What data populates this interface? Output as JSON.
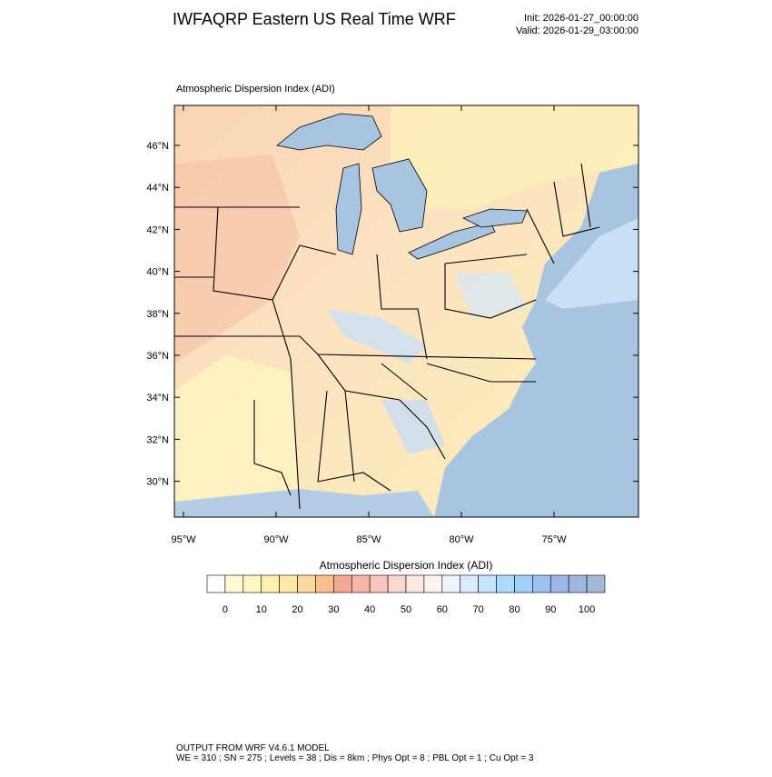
{
  "header": {
    "title": "IWFAQRP Eastern US Real Time WRF",
    "init": "Init: 2026-01-27_00:00:00",
    "valid": "Valid: 2026-01-29_03:00:00"
  },
  "map": {
    "subtitle": "Atmospheric Dispersion Index   (ADI)",
    "lat_labels": [
      "46°N",
      "44°N",
      "42°N",
      "40°N",
      "38°N",
      "36°N",
      "34°N",
      "32°N",
      "30°N"
    ],
    "lon_labels": [
      "95°W",
      "90°W",
      "85°W",
      "80°W",
      "75°W"
    ]
  },
  "colorbar": {
    "title": "Atmospheric Dispersion Index (ADI)",
    "labels": [
      "0",
      "10",
      "20",
      "30",
      "40",
      "50",
      "60",
      "70",
      "80",
      "90",
      "100"
    ],
    "colors": [
      "#ffffff",
      "#fffbd6",
      "#fff6c4",
      "#fff0b2",
      "#ffe9a4",
      "#fdd9a2",
      "#f9c08c",
      "#f4a794",
      "#f6b5ab",
      "#f8c6be",
      "#fad7d0",
      "#fce6e2",
      "#fdf3f1",
      "#eef3ff",
      "#dcebff",
      "#c4e4ff",
      "#acdbff",
      "#a2d0f9",
      "#9ec2f0",
      "#9cb6e6",
      "#9fb6dd",
      "#a3bad6"
    ]
  },
  "footer": {
    "line1": "OUTPUT FROM WRF V4.6.1 MODEL",
    "line2": "WE = 310 ; SN = 275 ; Levels = 38 ; Dis = 8km ; Phys Opt = 8 ; PBL Opt = 1 ; Cu Opt = 3"
  }
}
